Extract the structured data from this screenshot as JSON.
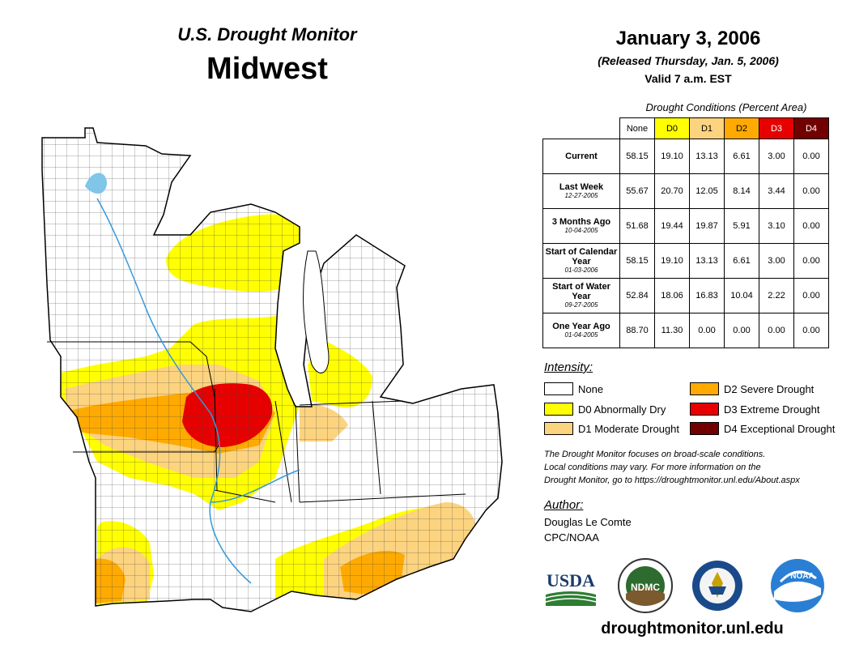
{
  "header": {
    "subtitle": "U.S. Drought Monitor",
    "region": "Midwest",
    "date": "January 3, 2006",
    "released": "(Released Thursday, Jan. 5, 2006)",
    "valid": "Valid 7 a.m. EST"
  },
  "table": {
    "caption": "Drought Conditions (Percent Area)",
    "columns": [
      "None",
      "D0",
      "D1",
      "D2",
      "D3",
      "D4"
    ],
    "column_colors": [
      "#ffffff",
      "#ffff00",
      "#fcd37f",
      "#ffaa00",
      "#e60000",
      "#730000"
    ],
    "rows": [
      {
        "label": "Current",
        "date": "",
        "values": [
          "58.15",
          "19.10",
          "13.13",
          "6.61",
          "3.00",
          "0.00"
        ]
      },
      {
        "label": "Last Week",
        "date": "12-27-2005",
        "values": [
          "55.67",
          "20.70",
          "12.05",
          "8.14",
          "3.44",
          "0.00"
        ]
      },
      {
        "label": "3 Months Ago",
        "date": "10-04-2005",
        "values": [
          "51.68",
          "19.44",
          "19.87",
          "5.91",
          "3.10",
          "0.00"
        ]
      },
      {
        "label": "Start of Calendar Year",
        "date": "01-03-2006",
        "values": [
          "58.15",
          "19.10",
          "13.13",
          "6.61",
          "3.00",
          "0.00"
        ]
      },
      {
        "label": "Start of Water Year",
        "date": "09-27-2005",
        "values": [
          "52.84",
          "18.06",
          "16.83",
          "10.04",
          "2.22",
          "0.00"
        ]
      },
      {
        "label": "One Year Ago",
        "date": "01-04-2005",
        "values": [
          "88.70",
          "11.30",
          "0.00",
          "0.00",
          "0.00",
          "0.00"
        ]
      }
    ]
  },
  "legend": {
    "title": "Intensity:",
    "items": [
      {
        "label": "None",
        "color": "#ffffff"
      },
      {
        "label": "D0 Abnormally Dry",
        "color": "#ffff00"
      },
      {
        "label": "D1 Moderate Drought",
        "color": "#fcd37f"
      },
      {
        "label": "D2 Severe Drought",
        "color": "#ffaa00"
      },
      {
        "label": "D3 Extreme Drought",
        "color": "#e60000"
      },
      {
        "label": "D4 Exceptional Drought",
        "color": "#730000"
      }
    ]
  },
  "note": {
    "line1": "The Drought Monitor focuses on broad-scale conditions.",
    "line2": "Local conditions may vary. For more information on the",
    "line3": "Drought Monitor, go to https://droughtmonitor.unl.edu/About.aspx"
  },
  "author": {
    "title": "Author:",
    "name": "Douglas Le Comte",
    "org": "CPC/NOAA"
  },
  "logos": {
    "usda": "USDA",
    "ndmc": "NDMC",
    "noaa": "NOAA"
  },
  "site_url": "droughtmonitor.unl.edu"
}
